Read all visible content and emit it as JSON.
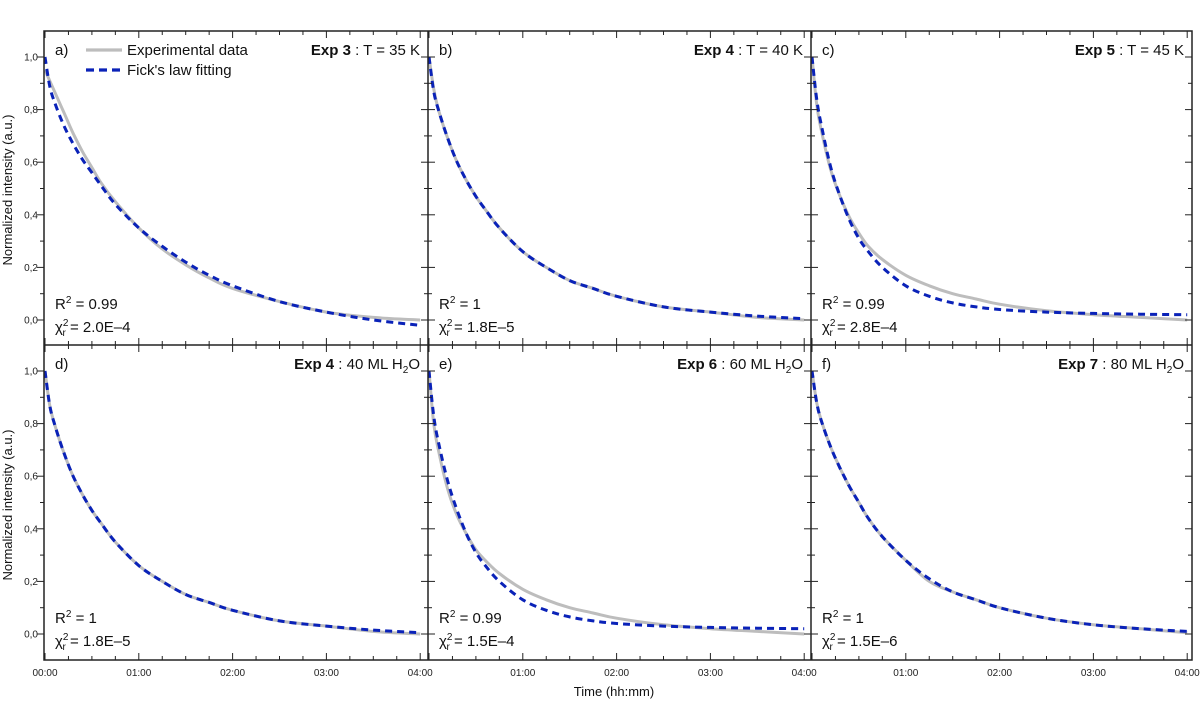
{
  "chart_data": {
    "type": "line",
    "layout": "2x3 grid of panels sharing x and y axes",
    "xlabel": "Time (hh:mm)",
    "ylabel": "Normalized intensity (a.u.)",
    "x_ticks": [
      "00:00",
      "01:00",
      "02:00",
      "03:00",
      "04:00"
    ],
    "x_range_hours": [
      0,
      4.05
    ],
    "y_ticks": [
      "0,0",
      "0,2",
      "0,4",
      "0,6",
      "0,8",
      "1,0"
    ],
    "ylim": [
      -0.09,
      1.1
    ],
    "legend": {
      "position": "top-left of panel a",
      "entries": [
        {
          "label": "Experimental data",
          "style": "solid",
          "color": "#bdbdbd"
        },
        {
          "label": "Fick's law fitting",
          "style": "dashed",
          "color": "#0a22b8"
        }
      ]
    },
    "colors": {
      "experimental": "#bdbdbd",
      "fit": "#0a22b8",
      "axis": "#222222"
    },
    "x": [
      0,
      0.05,
      0.1,
      0.2,
      0.3,
      0.4,
      0.5,
      0.6,
      0.75,
      1.0,
      1.25,
      1.5,
      1.75,
      2.0,
      2.5,
      3.0,
      3.5,
      4.0
    ],
    "panels": [
      {
        "letter": "a)",
        "title_bold": "Exp 3",
        "title_rest": " : T = 35 K",
        "title_sub": "",
        "title_tail": "",
        "r2": "0.99",
        "chi2": "2.0E–4",
        "series": [
          {
            "name": "Experimental data",
            "values": [
              0.95,
              0.91,
              0.87,
              0.79,
              0.71,
              0.64,
              0.58,
              0.52,
              0.45,
              0.35,
              0.27,
              0.21,
              0.16,
              0.12,
              0.07,
              0.03,
              0.01,
              0.0
            ]
          },
          {
            "name": "Fick's law fitting",
            "values": [
              1.0,
              0.89,
              0.83,
              0.74,
              0.67,
              0.61,
              0.56,
              0.51,
              0.44,
              0.35,
              0.28,
              0.22,
              0.17,
              0.13,
              0.07,
              0.03,
              0.0,
              -0.02
            ]
          }
        ]
      },
      {
        "letter": "b)",
        "title_bold": "Exp 4",
        "title_rest": " : T = 40 K",
        "title_sub": "",
        "title_tail": "",
        "r2": "1",
        "chi2": "1.8E–5",
        "series": [
          {
            "name": "Experimental data",
            "values": [
              1.0,
              0.88,
              0.8,
              0.69,
              0.6,
              0.53,
              0.47,
              0.42,
              0.35,
              0.26,
              0.2,
              0.15,
              0.12,
              0.09,
              0.05,
              0.03,
              0.01,
              0.0
            ]
          },
          {
            "name": "Fick's law fitting",
            "values": [
              1.0,
              0.87,
              0.8,
              0.69,
              0.6,
              0.53,
              0.47,
              0.42,
              0.35,
              0.26,
              0.2,
              0.15,
              0.12,
              0.09,
              0.05,
              0.03,
              0.015,
              0.005
            ]
          }
        ]
      },
      {
        "letter": "c)",
        "title_bold": "Exp 5",
        "title_rest": " : T = 45 K",
        "title_sub": "",
        "title_tail": "",
        "r2": "0.99",
        "chi2": "2.8E–4",
        "series": [
          {
            "name": "Experimental data",
            "values": [
              1.0,
              0.82,
              0.72,
              0.57,
              0.47,
              0.39,
              0.33,
              0.28,
              0.23,
              0.17,
              0.13,
              0.1,
              0.08,
              0.06,
              0.035,
              0.02,
              0.01,
              0.0
            ]
          },
          {
            "name": "Fick's law fitting",
            "values": [
              1.0,
              0.84,
              0.74,
              0.58,
              0.47,
              0.38,
              0.31,
              0.26,
              0.2,
              0.13,
              0.09,
              0.065,
              0.05,
              0.04,
              0.03,
              0.025,
              0.022,
              0.02
            ]
          }
        ]
      },
      {
        "letter": "d)",
        "title_bold": "Exp 4",
        "title_rest": " : 40 ML H",
        "title_sub": "2",
        "title_tail": "O",
        "r2": "1",
        "chi2": "1.8E–5",
        "series": [
          {
            "name": "Experimental data",
            "values": [
              1.0,
              0.87,
              0.8,
              0.69,
              0.6,
              0.53,
              0.47,
              0.42,
              0.35,
              0.26,
              0.2,
              0.15,
              0.12,
              0.09,
              0.05,
              0.03,
              0.01,
              0.0
            ]
          },
          {
            "name": "Fick's law fitting",
            "values": [
              1.0,
              0.87,
              0.8,
              0.69,
              0.6,
              0.53,
              0.47,
              0.42,
              0.35,
              0.26,
              0.2,
              0.15,
              0.12,
              0.09,
              0.05,
              0.03,
              0.015,
              0.005
            ]
          }
        ]
      },
      {
        "letter": "e)",
        "title_bold": "Exp 6",
        "title_rest": " : 60 ML H",
        "title_sub": "2",
        "title_tail": "O",
        "r2": "0.99",
        "chi2": "1.5E–4",
        "series": [
          {
            "name": "Experimental data",
            "values": [
              1.0,
              0.8,
              0.7,
              0.55,
              0.45,
              0.38,
              0.32,
              0.28,
              0.23,
              0.17,
              0.13,
              0.1,
              0.08,
              0.06,
              0.035,
              0.02,
              0.01,
              0.0
            ]
          },
          {
            "name": "Fick's law fitting",
            "values": [
              1.0,
              0.83,
              0.73,
              0.58,
              0.47,
              0.38,
              0.31,
              0.26,
              0.2,
              0.13,
              0.09,
              0.065,
              0.05,
              0.04,
              0.03,
              0.025,
              0.022,
              0.02
            ]
          }
        ]
      },
      {
        "letter": "f)",
        "title_bold": "Exp 7",
        "title_rest": " : 80 ML H",
        "title_sub": "2",
        "title_tail": "O",
        "r2": "1",
        "chi2": "1.5E–6",
        "series": [
          {
            "name": "Experimental data",
            "values": [
              1.0,
              0.88,
              0.81,
              0.71,
              0.63,
              0.56,
              0.5,
              0.44,
              0.37,
              0.28,
              0.2,
              0.16,
              0.13,
              0.1,
              0.06,
              0.035,
              0.02,
              0.005
            ]
          },
          {
            "name": "Fick's law fitting",
            "values": [
              1.0,
              0.88,
              0.81,
              0.71,
              0.63,
              0.56,
              0.5,
              0.44,
              0.37,
              0.28,
              0.21,
              0.16,
              0.13,
              0.1,
              0.06,
              0.035,
              0.02,
              0.01
            ]
          }
        ]
      }
    ]
  }
}
